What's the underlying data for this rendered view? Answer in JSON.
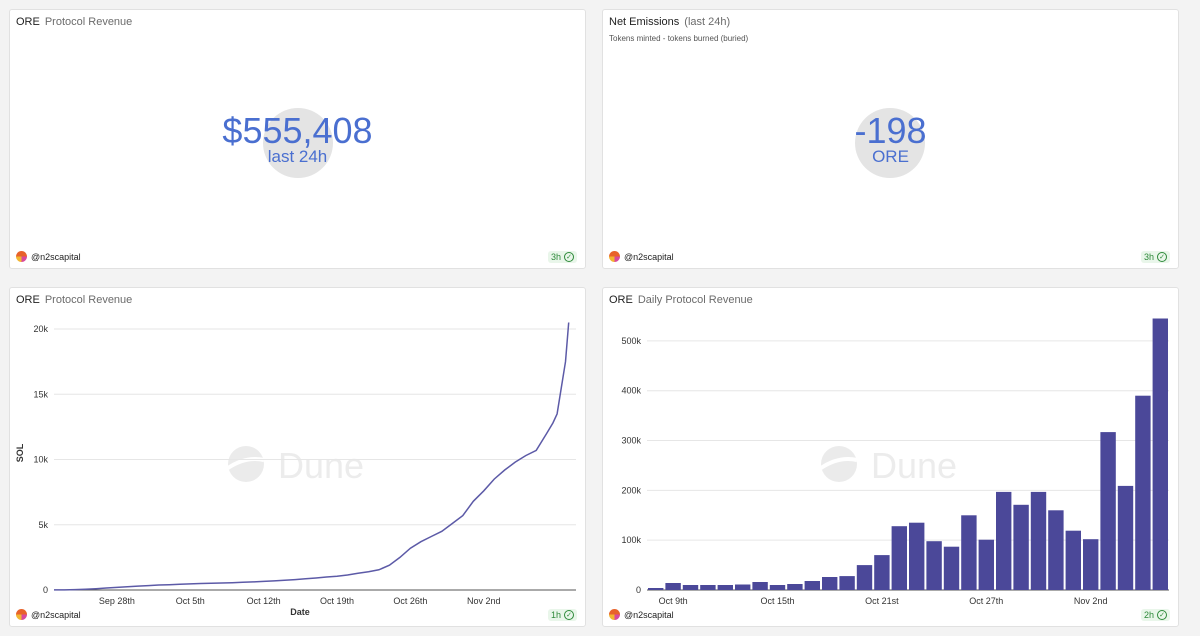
{
  "panels": {
    "revenue_counter": {
      "title": "ORE",
      "subtitle": "Protocol Revenue",
      "value": "$555,408",
      "value_label": "last 24h",
      "author": "@n2scapital",
      "refresh": "3h"
    },
    "emissions_counter": {
      "title": "Net Emissions",
      "subtitle": "(last 24h)",
      "description": "Tokens minted - tokens burned (buried)",
      "value": "-198",
      "value_label": "ORE",
      "author": "@n2scapital",
      "refresh": "3h"
    },
    "cumulative_chart": {
      "title": "ORE",
      "subtitle": "Protocol Revenue",
      "author": "@n2scapital",
      "refresh": "1h",
      "watermark": "Dune"
    },
    "daily_chart": {
      "title": "ORE",
      "subtitle": "Daily Protocol Revenue",
      "author": "@n2scapital",
      "refresh": "2h",
      "watermark": "Dune"
    }
  },
  "colors": {
    "accent": "#4a6fd0",
    "line": "#5c5aa7",
    "bar": "#4b4899",
    "ok": "#2e8a3a"
  },
  "chart_data": [
    {
      "type": "line",
      "title": "ORE Protocol Revenue",
      "xlabel": "Date",
      "ylabel": "SOL",
      "ylim": [
        0,
        21000
      ],
      "yticks": [
        0,
        5000,
        10000,
        15000,
        20000
      ],
      "ytick_labels": [
        "0",
        "5k",
        "10k",
        "15k",
        "20k"
      ],
      "x_range_days": [
        0,
        43
      ],
      "xticks": [
        6,
        13,
        20,
        27,
        34,
        41
      ],
      "xtick_labels": [
        "Sep 28th",
        "Oct 5th",
        "Oct 12th",
        "Oct 19th",
        "Oct 26th",
        "Nov 2nd"
      ],
      "series": [
        {
          "name": "SOL",
          "x": [
            0,
            1,
            2,
            3,
            4,
            5,
            6,
            7,
            8,
            9,
            10,
            11,
            12,
            13,
            14,
            15,
            16,
            17,
            18,
            19,
            20,
            21,
            22,
            23,
            24,
            25,
            26,
            27,
            28,
            29,
            30,
            31,
            32,
            33,
            34,
            35,
            36,
            37,
            38,
            39,
            40,
            41,
            42,
            43,
            44,
            45,
            46,
            47,
            47.6,
            48,
            48.4,
            48.8,
            49.1
          ],
          "values": [
            5,
            10,
            30,
            60,
            100,
            150,
            200,
            250,
            300,
            340,
            380,
            410,
            440,
            470,
            500,
            520,
            540,
            560,
            590,
            620,
            660,
            700,
            750,
            800,
            860,
            920,
            1000,
            1050,
            1150,
            1280,
            1400,
            1550,
            1900,
            2500,
            3200,
            3700,
            4100,
            4500,
            5100,
            5700,
            6800,
            7600,
            8500,
            9200,
            9800,
            10300,
            10700,
            12000,
            12800,
            13500,
            15500,
            17500,
            20500
          ]
        }
      ]
    },
    {
      "type": "bar",
      "title": "ORE Daily Protocol Revenue",
      "xlabel": "",
      "ylabel": "",
      "ylim": [
        0,
        550000
      ],
      "yticks": [
        0,
        100000,
        200000,
        300000,
        400000,
        500000
      ],
      "ytick_labels": [
        "0",
        "100k",
        "200k",
        "300k",
        "400k",
        "500k"
      ],
      "categories_start": "Oct 8th",
      "xtick_indices": [
        1,
        7,
        13,
        19,
        25
      ],
      "xtick_labels": [
        "Oct 9th",
        "Oct 15th",
        "Oct 21st",
        "Oct 27th",
        "Nov 2nd"
      ],
      "series": [
        {
          "name": "Daily Revenue",
          "values": [
            4000,
            14000,
            10000,
            10000,
            10000,
            11000,
            16000,
            10000,
            12000,
            18000,
            26000,
            28000,
            50000,
            70000,
            128000,
            135000,
            98000,
            87000,
            150000,
            101000,
            197000,
            171000,
            197000,
            160000,
            119000,
            102000,
            317000,
            209000,
            390000,
            545000
          ]
        }
      ]
    }
  ]
}
